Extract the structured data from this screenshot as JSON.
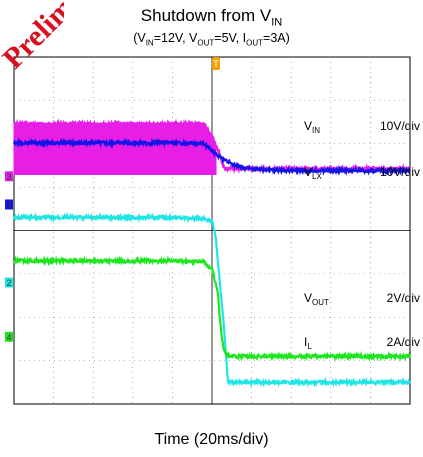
{
  "chart_data": {
    "type": "line",
    "title_parts": {
      "prefix": "Shutdown from V",
      "sub": "IN"
    },
    "subtitle_parts": [
      "(V",
      "IN",
      "=12V, V",
      "OUT",
      "=5V, I",
      "OUT",
      "=3A)"
    ],
    "xlabel": "Time (20ms/div)",
    "trigger_marker": "T",
    "x_range": [
      0,
      200
    ],
    "grid": true,
    "series": [
      {
        "name": "VIN",
        "label_parts": [
          "V",
          "IN"
        ],
        "scale": "10V/div",
        "color": "#1414e6",
        "channel": "1",
        "x": [
          0,
          20,
          40,
          60,
          80,
          96,
          100,
          104,
          108,
          112,
          116,
          120,
          130,
          140,
          160,
          180,
          200
        ],
        "y": [
          14.2,
          14.2,
          14.2,
          14.2,
          14.2,
          14.0,
          12.4,
          10.9,
          9.8,
          9.0,
          8.5,
          8.2,
          7.9,
          7.8,
          7.8,
          7.8,
          7.8
        ]
      },
      {
        "name": "VLX",
        "label_parts": [
          "V",
          "LX"
        ],
        "scale": "10V/div",
        "color": "#e61ee6",
        "channel": "3",
        "x": [
          0,
          20,
          40,
          60,
          80,
          96,
          100,
          104,
          106,
          108,
          120,
          140,
          160,
          180,
          200
        ],
        "y": [
          12.0,
          12.0,
          12.0,
          12.0,
          12.0,
          12.0,
          9.0,
          5.0,
          2.0,
          1.8,
          1.7,
          1.7,
          1.7,
          1.7,
          1.7
        ],
        "ripple_low": 0.4,
        "ripple_x_range": [
          0,
          102
        ]
      },
      {
        "name": "IL",
        "label_parts": [
          "I",
          "L"
        ],
        "scale": "2A/div",
        "color": "#1ee6e6",
        "channel": "2",
        "x": [
          0,
          20,
          40,
          60,
          80,
          95,
          100,
          102,
          104,
          106,
          108,
          110,
          120,
          140,
          160,
          180,
          200
        ],
        "y": [
          3.0,
          3.0,
          3.0,
          3.0,
          3.0,
          2.95,
          2.85,
          2.0,
          0.0,
          -2.0,
          -4.5,
          -4.6,
          -4.6,
          -4.6,
          -4.6,
          -4.6,
          -4.6
        ]
      },
      {
        "name": "VOUT",
        "label_parts": [
          "V",
          "OUT"
        ],
        "scale": "2V/div",
        "color": "#1ee61e",
        "channel": "4",
        "x": [
          0,
          20,
          40,
          60,
          80,
          96,
          100,
          103,
          104,
          105,
          106,
          108,
          120,
          140,
          160,
          180,
          200
        ],
        "y": [
          3.5,
          3.5,
          3.5,
          3.5,
          3.5,
          3.45,
          3.1,
          2.0,
          0.8,
          0.0,
          -0.6,
          -0.9,
          -0.9,
          -0.9,
          -0.9,
          -0.9,
          -0.9
        ]
      }
    ]
  },
  "watermark_text": "Prelim"
}
